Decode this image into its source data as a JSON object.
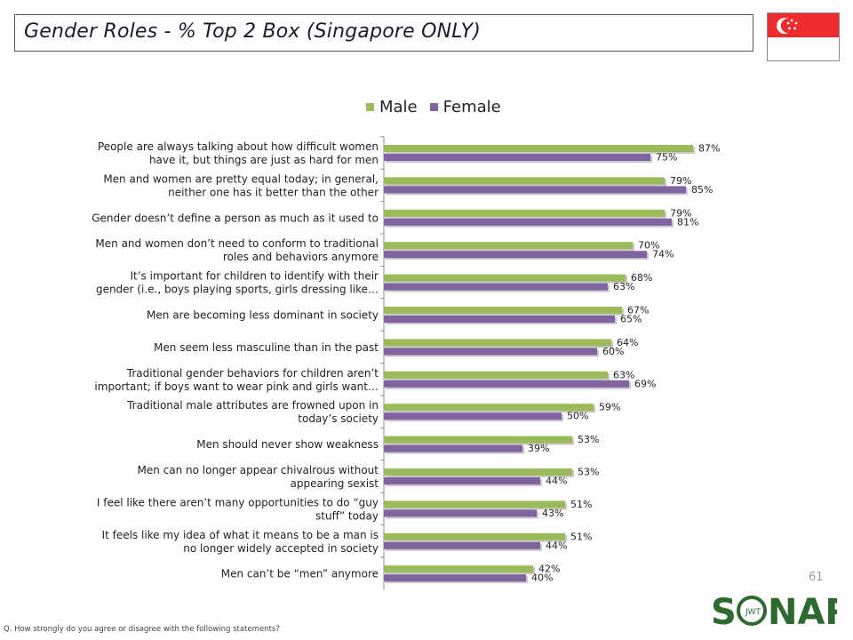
{
  "title": "Gender Roles - % Top 2 Box (Singapore ONLY)",
  "page_number": "61",
  "footnote": "Q. How strongly do you agree or disagree with the following statements?",
  "logo": {
    "text": "SONAR",
    "sub": "JWT"
  },
  "colors": {
    "male": "#9bbb59",
    "female": "#8064a2",
    "flag_red": "#ef2b2d"
  },
  "chart_data": {
    "type": "bar",
    "orientation": "horizontal",
    "legend_position": "top",
    "xlim": [
      0,
      100
    ],
    "grid": false,
    "categories": [
      [
        "People are always talking about how difficult women",
        "have it, but things are just as hard for men"
      ],
      [
        "Men and women are pretty equal today; in general,",
        "neither one has it better than the other"
      ],
      [
        "Gender doesn’t define a person as much as it used to"
      ],
      [
        "Men and women don’t need to conform to traditional",
        "roles and behaviors anymore"
      ],
      [
        "It’s important for children to identify with their",
        "gender (i.e., boys playing sports, girls dressing like…"
      ],
      [
        "Men are becoming less dominant in society"
      ],
      [
        "Men seem less masculine than in the past"
      ],
      [
        "Traditional gender behaviors for children aren’t",
        "important; if boys want to wear pink and girls want…"
      ],
      [
        "Traditional male attributes are frowned upon in",
        "today’s society"
      ],
      [
        "Men should never show weakness"
      ],
      [
        "Men can no longer appear chivalrous without",
        "appearing sexist"
      ],
      [
        "I feel like there aren’t many opportunities to do “guy",
        "stuff” today"
      ],
      [
        "It feels like my idea of what it means to be a man is",
        "no longer widely accepted in society"
      ],
      [
        "Men can’t be “men” anymore"
      ]
    ],
    "series": [
      {
        "name": "Male",
        "values": [
          87,
          79,
          79,
          70,
          68,
          67,
          64,
          63,
          59,
          53,
          53,
          51,
          51,
          42
        ]
      },
      {
        "name": "Female",
        "values": [
          75,
          85,
          81,
          74,
          63,
          65,
          60,
          69,
          50,
          39,
          44,
          43,
          44,
          40
        ]
      }
    ],
    "value_suffix": "%"
  }
}
